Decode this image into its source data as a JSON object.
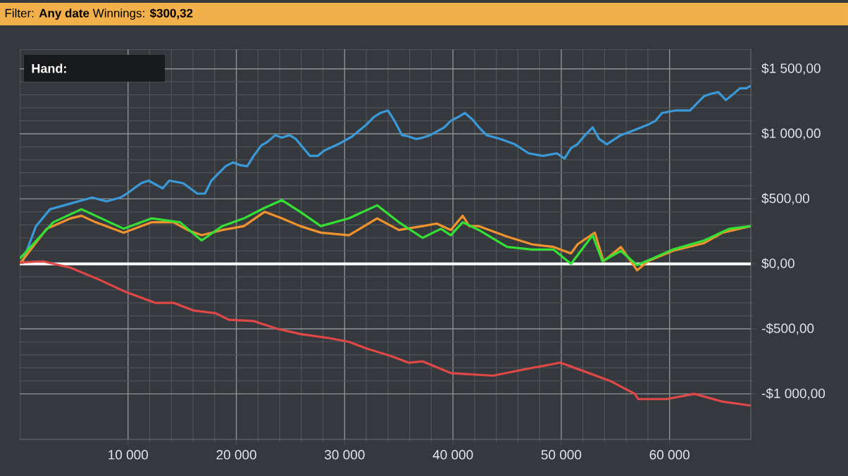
{
  "chart_data": {
    "type": "line",
    "title": "Filter: **Any date** Winnings: **$300,32**",
    "legend_title": "Hand:",
    "grid": true,
    "xlim": [
      0,
      67500
    ],
    "ylim": [
      -1350,
      1650
    ],
    "xticks": [
      {
        "value": 10000,
        "label": "10 000"
      },
      {
        "value": 20000,
        "label": "20 000"
      },
      {
        "value": 30000,
        "label": "30 000"
      },
      {
        "value": 40000,
        "label": "40 000"
      },
      {
        "value": 50000,
        "label": "50 000"
      },
      {
        "value": 60000,
        "label": "60 000"
      }
    ],
    "yticks": [
      {
        "value": -1000,
        "label": "-$1 000,00"
      },
      {
        "value": -500,
        "label": "-$500,00"
      },
      {
        "value": 0,
        "label": "$0,00"
      },
      {
        "value": 500,
        "label": "$500,00"
      },
      {
        "value": 1000,
        "label": "$1 000,00"
      },
      {
        "value": 1500,
        "label": "$1 500,00"
      }
    ],
    "ref_lines": [
      {
        "axis": "y",
        "value": 0,
        "color": "#ffffff"
      }
    ],
    "series": [
      {
        "color": "#3a9ad9",
        "x": [
          200,
          1500,
          2800,
          4100,
          5400,
          6700,
          8000,
          9300,
          9900,
          11200,
          11900,
          13200,
          13800,
          15100,
          16400,
          17100,
          17700,
          19000,
          19700,
          20300,
          21000,
          21600,
          22300,
          22900,
          23600,
          24200,
          24900,
          25500,
          26800,
          27500,
          28100,
          29400,
          30700,
          32000,
          32700,
          33300,
          34000,
          34600,
          35300,
          35900,
          36600,
          37200,
          37900,
          39200,
          39800,
          40500,
          41100,
          41800,
          42400,
          43100,
          44400,
          45700,
          47000,
          48300,
          49600,
          50300,
          50900,
          51500,
          52200,
          52900,
          53500,
          54200,
          55500,
          56800,
          58000,
          58700,
          59300,
          60600,
          61900,
          62600,
          63200,
          63900,
          64500,
          65200,
          65800,
          66500,
          67100,
          67500
        ],
        "values": [
          0,
          290,
          420,
          450,
          480,
          510,
          480,
          510,
          540,
          620,
          640,
          580,
          640,
          620,
          540,
          540,
          640,
          750,
          780,
          760,
          750,
          830,
          910,
          940,
          990,
          970,
          990,
          960,
          830,
          830,
          870,
          920,
          980,
          1070,
          1130,
          1160,
          1180,
          1100,
          990,
          980,
          960,
          970,
          990,
          1050,
          1100,
          1130,
          1160,
          1110,
          1050,
          990,
          960,
          920,
          850,
          830,
          850,
          810,
          890,
          920,
          990,
          1050,
          960,
          920,
          990,
          1030,
          1070,
          1100,
          1160,
          1180,
          1180,
          1240,
          1290,
          1310,
          1320,
          1260,
          1300,
          1350,
          1350,
          1370
        ]
      },
      {
        "color": "#f0922e",
        "x": [
          0,
          2500,
          4700,
          5700,
          7000,
          9600,
          12200,
          14200,
          15500,
          16800,
          18700,
          20700,
          22600,
          24200,
          25900,
          27800,
          30400,
          33000,
          35000,
          37200,
          38500,
          39800,
          40900,
          41500,
          42400,
          45000,
          47300,
          49300,
          50900,
          51500,
          53100,
          53900,
          55500,
          57000,
          58000,
          60300,
          63200,
          64900,
          67500
        ],
        "values": [
          0,
          270,
          350,
          370,
          320,
          240,
          320,
          320,
          260,
          220,
          260,
          290,
          400,
          350,
          290,
          240,
          220,
          350,
          260,
          290,
          310,
          260,
          370,
          290,
          290,
          210,
          150,
          130,
          80,
          150,
          240,
          20,
          130,
          -50,
          20,
          100,
          160,
          240,
          290
        ]
      },
      {
        "color": "#33e033",
        "x": [
          0,
          3100,
          5700,
          8300,
          9600,
          12200,
          14800,
          16800,
          18700,
          20700,
          22600,
          24200,
          25900,
          27800,
          30400,
          33000,
          35000,
          37200,
          38900,
          39800,
          40900,
          42400,
          45000,
          47300,
          49300,
          50900,
          52900,
          53800,
          55500,
          57000,
          58400,
          60300,
          63200,
          65500,
          67500
        ],
        "values": [
          40,
          320,
          420,
          320,
          270,
          350,
          320,
          180,
          290,
          350,
          430,
          490,
          400,
          290,
          350,
          450,
          320,
          200,
          270,
          220,
          320,
          260,
          130,
          110,
          110,
          0,
          220,
          20,
          100,
          -10,
          40,
          110,
          180,
          270,
          290
        ]
      },
      {
        "color": "#e04848",
        "x": [
          0,
          2100,
          4700,
          7300,
          9900,
          12500,
          14200,
          16100,
          18100,
          19300,
          21600,
          23800,
          25900,
          28500,
          30400,
          32000,
          34300,
          35900,
          37200,
          39800,
          43700,
          46700,
          49900,
          51900,
          54500,
          56800,
          57100,
          59700,
          62300,
          64900,
          67500
        ],
        "values": [
          10,
          20,
          -30,
          -120,
          -220,
          -300,
          -300,
          -360,
          -380,
          -430,
          -440,
          -500,
          -540,
          -570,
          -600,
          -650,
          -710,
          -760,
          -750,
          -840,
          -860,
          -810,
          -760,
          -820,
          -900,
          -1000,
          -1040,
          -1040,
          -1000,
          -1060,
          -1090
        ]
      }
    ]
  }
}
